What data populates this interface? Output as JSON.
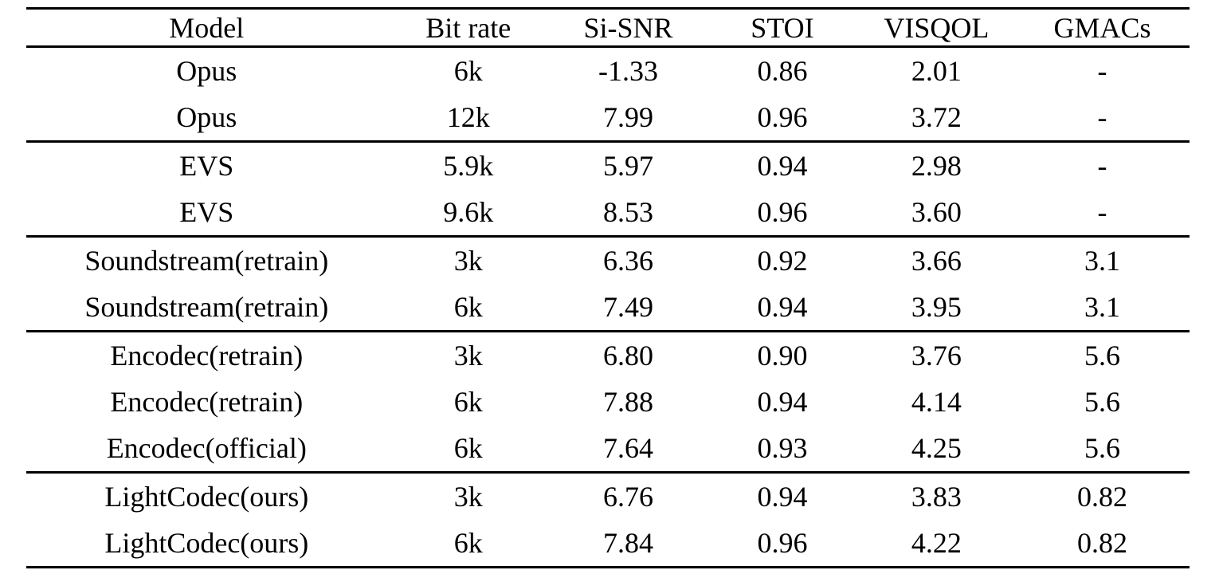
{
  "colors": {
    "background": "#ffffff",
    "text": "#000000",
    "rule": "#000000"
  },
  "table": {
    "columns": [
      "Model",
      "Bit rate",
      "Si-SNR",
      "STOI",
      "VISQOL",
      "GMACs"
    ],
    "sections": [
      {
        "rows": [
          [
            "Opus",
            "6k",
            "-1.33",
            "0.86",
            "2.01",
            "-"
          ],
          [
            "Opus",
            "12k",
            "7.99",
            "0.96",
            "3.72",
            "-"
          ]
        ]
      },
      {
        "rows": [
          [
            "EVS",
            "5.9k",
            "5.97",
            "0.94",
            "2.98",
            "-"
          ],
          [
            "EVS",
            "9.6k",
            "8.53",
            "0.96",
            "3.60",
            "-"
          ]
        ]
      },
      {
        "rows": [
          [
            "Soundstream(retrain)",
            "3k",
            "6.36",
            "0.92",
            "3.66",
            "3.1"
          ],
          [
            "Soundstream(retrain)",
            "6k",
            "7.49",
            "0.94",
            "3.95",
            "3.1"
          ]
        ]
      },
      {
        "rows": [
          [
            "Encodec(retrain)",
            "3k",
            "6.80",
            "0.90",
            "3.76",
            "5.6"
          ],
          [
            "Encodec(retrain)",
            "6k",
            "7.88",
            "0.94",
            "4.14",
            "5.6"
          ],
          [
            "Encodec(official)",
            "6k",
            "7.64",
            "0.93",
            "4.25",
            "5.6"
          ]
        ]
      },
      {
        "rows": [
          [
            "LightCodec(ours)",
            "3k",
            "6.76",
            "0.94",
            "3.83",
            "0.82"
          ],
          [
            "LightCodec(ours)",
            "6k",
            "7.84",
            "0.96",
            "4.22",
            "0.82"
          ]
        ]
      }
    ]
  }
}
